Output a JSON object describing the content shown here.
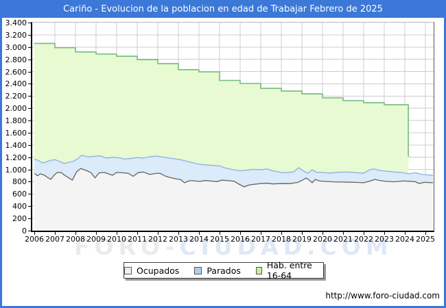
{
  "accent_color": "#3b78d7",
  "watermark": {
    "part1": "FORO-",
    "part2": "CIUDAD.COM"
  },
  "footer": {
    "url": "http://www.foro-ciudad.com"
  },
  "chart_data": {
    "type": "area",
    "title": "Cariño - Evolucion de la poblacion en edad de Trabajar Febrero de 2025",
    "xlabel": "",
    "ylabel": "",
    "xlim": [
      2006,
      2025.4
    ],
    "ylim": [
      0,
      3400
    ],
    "grid": true,
    "legend_position": "bottom",
    "x_ticks": [
      "2006",
      "2007",
      "2008",
      "2009",
      "2010",
      "2011",
      "2012",
      "2013",
      "2014",
      "2015",
      "2016",
      "2017",
      "2018",
      "2019",
      "2020",
      "2021",
      "2022",
      "2023",
      "2024",
      "2025"
    ],
    "y_ticks": [
      "3.400",
      "3.200",
      "3.000",
      "2.800",
      "2.600",
      "2.400",
      "2.200",
      "2.000",
      "1.800",
      "1.600",
      "1.400",
      "1.200",
      "1.000",
      "800",
      "600",
      "400",
      "200",
      "0"
    ],
    "legend": {
      "items": [
        {
          "label": "Ocupados",
          "swatch": "#f0f0f0"
        },
        {
          "label": "Parados",
          "swatch": "#aecdf0"
        },
        {
          "label": "Hab. entre 16-64",
          "swatch": "#c6f097"
        }
      ]
    },
    "colors": {
      "grid": "#cccccc",
      "hab_fill": "#e8fad2",
      "hab_stroke": "#74b97c",
      "parados_fill": "#dcebf9",
      "parados_stroke": "#8fb3e3",
      "ocupados_fill": "#f4f4f4",
      "ocupados_stroke": "#636363"
    },
    "series": [
      {
        "name": "Hab. entre 16-64",
        "step": true,
        "note": "annual working-age population; final point is the partial 2025 value",
        "points": [
          [
            2006,
            3060
          ],
          [
            2007,
            2990
          ],
          [
            2008,
            2920
          ],
          [
            2009,
            2885
          ],
          [
            2010,
            2850
          ],
          [
            2011,
            2795
          ],
          [
            2012,
            2730
          ],
          [
            2013,
            2630
          ],
          [
            2014,
            2595
          ],
          [
            2015,
            2455
          ],
          [
            2016,
            2405
          ],
          [
            2017,
            2325
          ],
          [
            2018,
            2280
          ],
          [
            2019,
            2235
          ],
          [
            2020,
            2170
          ],
          [
            2021,
            2125
          ],
          [
            2022,
            2090
          ],
          [
            2023,
            2057
          ],
          [
            2024.17,
            1210
          ]
        ]
      },
      {
        "name": "Parados",
        "step": false,
        "note": "curve drawn at Ocupados+Parados (stacked band top)",
        "points": [
          [
            2006,
            1170
          ],
          [
            2006.2,
            1145
          ],
          [
            2006.4,
            1105
          ],
          [
            2006.6,
            1125
          ],
          [
            2006.8,
            1150
          ],
          [
            2007,
            1160
          ],
          [
            2007.2,
            1135
          ],
          [
            2007.45,
            1098
          ],
          [
            2007.7,
            1118
          ],
          [
            2007.9,
            1135
          ],
          [
            2008.1,
            1170
          ],
          [
            2008.3,
            1232
          ],
          [
            2008.6,
            1205
          ],
          [
            2008.9,
            1215
          ],
          [
            2009.2,
            1222
          ],
          [
            2009.5,
            1185
          ],
          [
            2009.8,
            1200
          ],
          [
            2010.1,
            1192
          ],
          [
            2010.4,
            1170
          ],
          [
            2010.7,
            1180
          ],
          [
            2011,
            1196
          ],
          [
            2011.3,
            1185
          ],
          [
            2011.6,
            1208
          ],
          [
            2011.9,
            1218
          ],
          [
            2012.2,
            1205
          ],
          [
            2012.5,
            1190
          ],
          [
            2012.8,
            1175
          ],
          [
            2013.1,
            1160
          ],
          [
            2013.4,
            1135
          ],
          [
            2013.7,
            1110
          ],
          [
            2014,
            1085
          ],
          [
            2014.3,
            1075
          ],
          [
            2014.6,
            1068
          ],
          [
            2015,
            1058
          ],
          [
            2015.3,
            1022
          ],
          [
            2015.6,
            1000
          ],
          [
            2016,
            978
          ],
          [
            2016.3,
            988
          ],
          [
            2016.6,
            1002
          ],
          [
            2017,
            995
          ],
          [
            2017.3,
            1008
          ],
          [
            2017.6,
            978
          ],
          [
            2018,
            952
          ],
          [
            2018.3,
            948
          ],
          [
            2018.6,
            962
          ],
          [
            2018.85,
            1030
          ],
          [
            2019.1,
            970
          ],
          [
            2019.3,
            940
          ],
          [
            2019.5,
            995
          ],
          [
            2019.7,
            955
          ],
          [
            2020,
            950
          ],
          [
            2020.4,
            942
          ],
          [
            2020.8,
            955
          ],
          [
            2021.2,
            958
          ],
          [
            2021.6,
            948
          ],
          [
            2022,
            940
          ],
          [
            2022.3,
            995
          ],
          [
            2022.5,
            1008
          ],
          [
            2022.8,
            982
          ],
          [
            2023.1,
            972
          ],
          [
            2023.5,
            958
          ],
          [
            2023.9,
            948
          ],
          [
            2024.2,
            928
          ],
          [
            2024.5,
            948
          ],
          [
            2024.8,
            920
          ],
          [
            2025.1,
            910
          ],
          [
            2025.37,
            906
          ]
        ]
      },
      {
        "name": "Ocupados",
        "step": false,
        "points": [
          [
            2006,
            938
          ],
          [
            2006.15,
            898
          ],
          [
            2006.3,
            928
          ],
          [
            2006.5,
            905
          ],
          [
            2006.65,
            868
          ],
          [
            2006.8,
            838
          ],
          [
            2006.95,
            900
          ],
          [
            2007.1,
            948
          ],
          [
            2007.3,
            952
          ],
          [
            2007.5,
            898
          ],
          [
            2007.7,
            858
          ],
          [
            2007.85,
            827
          ],
          [
            2008.05,
            958
          ],
          [
            2008.25,
            1015
          ],
          [
            2008.5,
            988
          ],
          [
            2008.75,
            948
          ],
          [
            2008.95,
            862
          ],
          [
            2009.15,
            945
          ],
          [
            2009.4,
            952
          ],
          [
            2009.6,
            928
          ],
          [
            2009.8,
            905
          ],
          [
            2010,
            952
          ],
          [
            2010.3,
            945
          ],
          [
            2010.55,
            938
          ],
          [
            2010.8,
            888
          ],
          [
            2011.05,
            948
          ],
          [
            2011.3,
            958
          ],
          [
            2011.6,
            918
          ],
          [
            2011.9,
            935
          ],
          [
            2012.1,
            938
          ],
          [
            2012.35,
            894
          ],
          [
            2012.6,
            868
          ],
          [
            2012.9,
            845
          ],
          [
            2013.1,
            838
          ],
          [
            2013.3,
            783
          ],
          [
            2013.55,
            818
          ],
          [
            2013.8,
            812
          ],
          [
            2014.05,
            805
          ],
          [
            2014.3,
            820
          ],
          [
            2014.6,
            810
          ],
          [
            2014.9,
            802
          ],
          [
            2015.1,
            825
          ],
          [
            2015.4,
            818
          ],
          [
            2015.7,
            808
          ],
          [
            2016,
            749
          ],
          [
            2016.2,
            716
          ],
          [
            2016.45,
            748
          ],
          [
            2016.7,
            758
          ],
          [
            2017,
            771
          ],
          [
            2017.3,
            775
          ],
          [
            2017.6,
            764
          ],
          [
            2018,
            770
          ],
          [
            2018.4,
            768
          ],
          [
            2018.8,
            788
          ],
          [
            2019.05,
            830
          ],
          [
            2019.2,
            860
          ],
          [
            2019.35,
            827
          ],
          [
            2019.5,
            783
          ],
          [
            2019.65,
            838
          ],
          [
            2019.85,
            812
          ],
          [
            2020.1,
            805
          ],
          [
            2020.5,
            798
          ],
          [
            2020.9,
            795
          ],
          [
            2021.3,
            792
          ],
          [
            2021.7,
            788
          ],
          [
            2022,
            783
          ],
          [
            2022.3,
            810
          ],
          [
            2022.55,
            838
          ],
          [
            2022.8,
            818
          ],
          [
            2023.1,
            805
          ],
          [
            2023.5,
            798
          ],
          [
            2023.9,
            812
          ],
          [
            2024.2,
            808
          ],
          [
            2024.5,
            800
          ],
          [
            2024.7,
            771
          ],
          [
            2024.95,
            790
          ],
          [
            2025.2,
            786
          ],
          [
            2025.37,
            783
          ]
        ]
      }
    ]
  }
}
